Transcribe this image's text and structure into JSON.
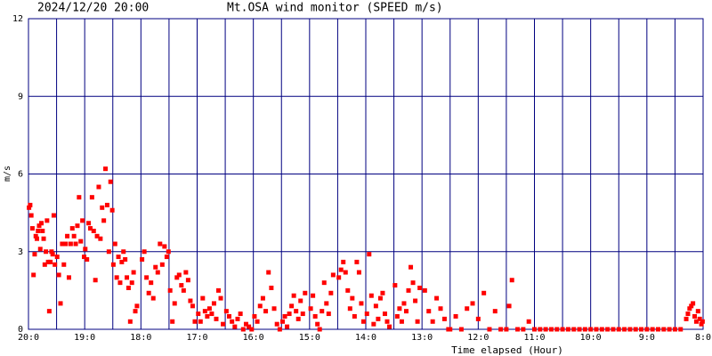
{
  "chart_data": {
    "type": "scatter",
    "timestamp": "2024/12/20 20:00",
    "title": "Mt.OSA wind monitor (SPEED m/s)",
    "ylabel": "m/s",
    "xlabel": "Time elapsed (Hour)",
    "color": "#ff0000",
    "grid_color": "#000080",
    "grid": true,
    "xlim": [
      0,
      12
    ],
    "ylim": [
      0,
      12
    ],
    "yticks": [
      0,
      3,
      6,
      9,
      12
    ],
    "xticks": [
      {
        "value": 0,
        "label": "20:0"
      },
      {
        "value": 1,
        "label": "19:0"
      },
      {
        "value": 2,
        "label": "18:0"
      },
      {
        "value": 3,
        "label": "17:0"
      },
      {
        "value": 4,
        "label": "16:0"
      },
      {
        "value": 5,
        "label": "15:0"
      },
      {
        "value": 6,
        "label": "14:0"
      },
      {
        "value": 7,
        "label": "13:0"
      },
      {
        "value": 8,
        "label": "12:0"
      },
      {
        "value": 9,
        "label": "11:0"
      },
      {
        "value": 10,
        "label": "10:0"
      },
      {
        "value": 11,
        "label": "9:0"
      },
      {
        "value": 12,
        "label": "8:0"
      }
    ],
    "xminor": [
      0.5,
      1.5,
      2.5,
      3.5,
      4.5,
      5.5,
      6.5,
      7.5,
      8.5,
      9.5,
      10.5,
      11.5
    ],
    "x": [
      0.01,
      0.03,
      0.05,
      0.07,
      0.09,
      0.11,
      0.13,
      0.15,
      0.17,
      0.19,
      0.21,
      0.23,
      0.25,
      0.27,
      0.29,
      0.31,
      0.33,
      0.35,
      0.37,
      0.39,
      0.41,
      0.43,
      0.45,
      0.47,
      0.51,
      0.54,
      0.57,
      0.6,
      0.63,
      0.66,
      0.69,
      0.72,
      0.75,
      0.78,
      0.81,
      0.84,
      0.87,
      0.9,
      0.93,
      0.96,
      0.99,
      1.01,
      1.04,
      1.07,
      1.1,
      1.13,
      1.16,
      1.19,
      1.22,
      1.25,
      1.28,
      1.31,
      1.34,
      1.37,
      1.4,
      1.43,
      1.46,
      1.49,
      1.51,
      1.54,
      1.57,
      1.6,
      1.63,
      1.66,
      1.69,
      1.72,
      1.75,
      1.78,
      1.81,
      1.84,
      1.87,
      1.9,
      1.93,
      2.02,
      2.06,
      2.1,
      2.14,
      2.18,
      2.22,
      2.26,
      2.3,
      2.34,
      2.38,
      2.42,
      2.46,
      2.49,
      2.52,
      2.56,
      2.6,
      2.64,
      2.68,
      2.72,
      2.76,
      2.8,
      2.84,
      2.88,
      2.92,
      2.96,
      3.02,
      3.06,
      3.1,
      3.14,
      3.18,
      3.22,
      3.26,
      3.3,
      3.34,
      3.38,
      3.42,
      3.46,
      3.52,
      3.57,
      3.62,
      3.67,
      3.72,
      3.77,
      3.82,
      3.87,
      3.92,
      3.97,
      4.02,
      4.07,
      4.12,
      4.17,
      4.22,
      4.27,
      4.32,
      4.37,
      4.42,
      4.47,
      4.52,
      4.56,
      4.6,
      4.64,
      4.68,
      4.72,
      4.76,
      4.8,
      4.84,
      4.88,
      4.92,
      5.02,
      5.06,
      5.1,
      5.14,
      5.18,
      5.22,
      5.26,
      5.3,
      5.34,
      5.38,
      5.42,
      5.52,
      5.56,
      5.6,
      5.64,
      5.68,
      5.72,
      5.76,
      5.8,
      5.84,
      5.88,
      5.92,
      5.96,
      6.02,
      6.06,
      6.1,
      6.14,
      6.18,
      6.22,
      6.26,
      6.3,
      6.34,
      6.38,
      6.42,
      6.52,
      6.56,
      6.6,
      6.64,
      6.68,
      6.72,
      6.76,
      6.8,
      6.84,
      6.88,
      6.92,
      6.96,
      7.05,
      7.12,
      7.19,
      7.26,
      7.33,
      7.4,
      7.47,
      7.6,
      7.8,
      7.9,
      8.0,
      8.1,
      8.3,
      8.55,
      8.6,
      8.9,
      7.5,
      7.7,
      8.2,
      8.4,
      8.5,
      8.7,
      8.8,
      9.0,
      9.1,
      9.2,
      9.3,
      9.4,
      9.5,
      9.6,
      9.7,
      9.8,
      9.9,
      10.0,
      10.1,
      10.2,
      10.3,
      10.4,
      10.5,
      10.6,
      10.7,
      10.8,
      10.9,
      11.0,
      11.1,
      11.2,
      11.3,
      11.4,
      11.5,
      11.6,
      11.7,
      11.73,
      11.76,
      11.79,
      11.82,
      11.85,
      11.88,
      11.91,
      11.94,
      11.97,
      11.99
    ],
    "values": [
      4.7,
      4.8,
      4.4,
      3.9,
      2.1,
      2.9,
      3.6,
      3.5,
      3.8,
      4.0,
      3.1,
      4.1,
      3.8,
      3.5,
      2.5,
      3.0,
      4.2,
      2.6,
      0.7,
      2.6,
      3.0,
      2.9,
      4.4,
      2.5,
      2.8,
      2.1,
      1.0,
      3.3,
      2.5,
      3.3,
      3.6,
      2.0,
      3.3,
      3.9,
      3.6,
      3.3,
      4.0,
      5.1,
      3.4,
      4.2,
      2.8,
      3.1,
      2.7,
      4.1,
      3.9,
      5.1,
      3.8,
      1.9,
      3.6,
      5.5,
      3.5,
      4.7,
      4.2,
      6.2,
      4.8,
      3.0,
      5.7,
      4.6,
      2.5,
      3.3,
      2.0,
      2.8,
      1.8,
      2.6,
      3.0,
      2.7,
      2.0,
      1.6,
      0.3,
      1.8,
      2.2,
      0.7,
      0.9,
      2.7,
      3.0,
      2.0,
      1.4,
      1.8,
      1.2,
      2.4,
      2.2,
      3.3,
      2.5,
      3.2,
      2.8,
      3.0,
      1.5,
      0.3,
      1.0,
      2.0,
      2.1,
      1.7,
      1.5,
      2.2,
      1.9,
      1.1,
      0.9,
      0.3,
      0.6,
      0.3,
      1.2,
      0.7,
      0.5,
      0.8,
      0.6,
      1.0,
      0.4,
      1.5,
      1.2,
      0.2,
      0.7,
      0.5,
      0.3,
      0.1,
      0.4,
      0.6,
      0.0,
      0.2,
      0.1,
      0.0,
      0.5,
      0.3,
      0.9,
      1.2,
      0.7,
      2.2,
      1.6,
      0.8,
      0.2,
      0.0,
      0.3,
      0.5,
      0.1,
      0.6,
      0.9,
      1.3,
      0.7,
      0.4,
      1.1,
      0.6,
      1.4,
      0.8,
      1.3,
      0.5,
      0.2,
      0.0,
      0.7,
      1.8,
      1.0,
      0.6,
      1.4,
      2.1,
      2.0,
      2.3,
      2.6,
      2.2,
      1.5,
      0.8,
      1.2,
      0.5,
      2.6,
      2.2,
      1.0,
      0.3,
      0.6,
      2.9,
      1.3,
      0.2,
      0.9,
      0.4,
      1.2,
      1.4,
      0.6,
      0.3,
      0.1,
      1.7,
      0.5,
      0.8,
      0.3,
      1.0,
      0.7,
      1.5,
      2.4,
      1.8,
      1.1,
      0.3,
      1.6,
      1.5,
      0.7,
      0.3,
      1.2,
      0.8,
      0.4,
      0.0,
      0.5,
      0.8,
      1.0,
      0.4,
      1.4,
      0.7,
      0.9,
      1.9,
      0.3,
      0,
      0,
      0,
      0,
      0,
      0,
      0,
      0,
      0,
      0,
      0,
      0,
      0,
      0,
      0,
      0,
      0,
      0,
      0,
      0,
      0,
      0,
      0,
      0,
      0,
      0,
      0,
      0,
      0,
      0,
      0,
      0,
      0,
      0,
      0.4,
      0.6,
      0.8,
      0.9,
      1.0,
      0.5,
      0.3,
      0.7,
      0.4,
      0.2,
      0.3
    ]
  }
}
